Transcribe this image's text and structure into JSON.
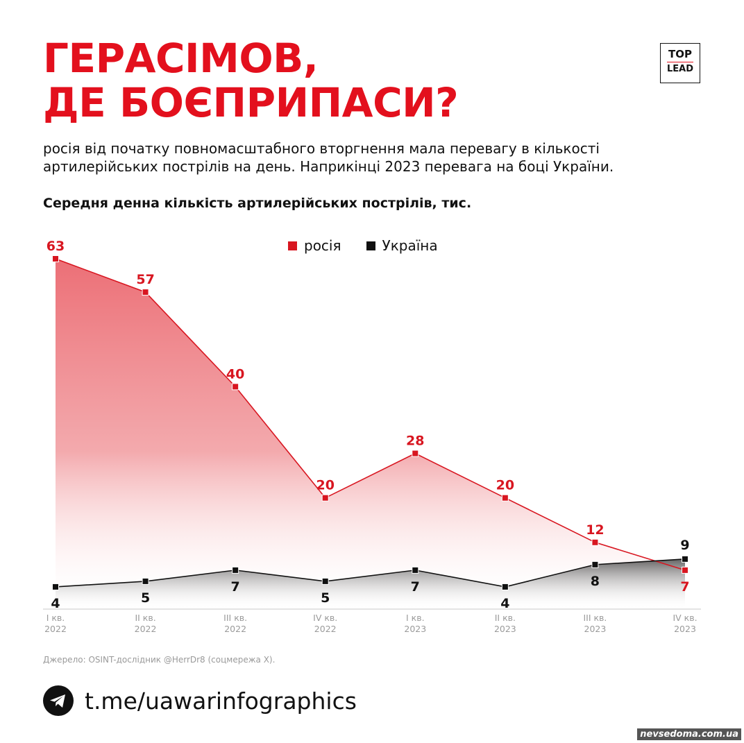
{
  "header": {
    "title_line1": "ГЕРАСІМОВ,",
    "title_line2": "ДЕ БОЄПРИПАСИ?",
    "logo_top": "TOP",
    "logo_bottom": "LEAD",
    "subtitle_line1": "росія від початку повномасштабного вторгнення мала перевагу в кількості",
    "subtitle_line2": "артилерійських пострілів на день. Наприкінці 2023 перевага на боці України."
  },
  "colors": {
    "accent": "#e3101d",
    "russia": "#d81620",
    "ukraine": "#111111"
  },
  "chart_data": {
    "type": "area",
    "title": "Середня денна кількість артилерійських пострілів, тис.",
    "categories": [
      [
        "I кв.",
        "2022"
      ],
      [
        "II кв.",
        "2022"
      ],
      [
        "III кв.",
        "2022"
      ],
      [
        "IV кв.",
        "2022"
      ],
      [
        "I кв.",
        "2023"
      ],
      [
        "II кв.",
        "2023"
      ],
      [
        "III кв.",
        "2023"
      ],
      [
        "IV кв.",
        "2023"
      ]
    ],
    "series": [
      {
        "name": "росія",
        "color": "#d81620",
        "values": [
          63,
          57,
          40,
          20,
          28,
          20,
          12,
          7
        ]
      },
      {
        "name": "Україна",
        "color": "#111111",
        "values": [
          4,
          5,
          7,
          5,
          7,
          4,
          8,
          9
        ]
      }
    ],
    "ylim": [
      0,
      63
    ],
    "legend_position": "top-center",
    "grid": false
  },
  "footer": {
    "source": "Джерело: OSINT-дослідник @HerrDr8 (соцмережа X).",
    "link": "t.me/uawarinfographics",
    "watermark": "nevsedoma.com.ua"
  }
}
